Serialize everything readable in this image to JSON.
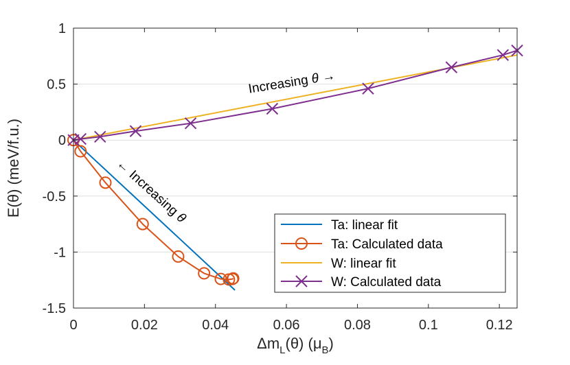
{
  "chart_data": {
    "type": "line",
    "xlabel": "Δm_L(θ) (μ_B)",
    "ylabel": "E(θ) (meV/f.u.)",
    "xlim": [
      0,
      0.125
    ],
    "ylim": [
      -1.5,
      1
    ],
    "grid": "horizontal",
    "x_ticks": [
      0,
      0.02,
      0.04,
      0.06,
      0.08,
      0.1,
      0.12
    ],
    "x_tick_labels": [
      "0",
      "0.02",
      "0.04",
      "0.06",
      "0.08",
      "0.1",
      "0.12"
    ],
    "y_ticks": [
      -1.5,
      -1,
      -0.5,
      0,
      0.5,
      1
    ],
    "y_tick_labels": [
      "-1.5",
      "-1",
      "-0.5",
      "0",
      "0.5",
      "1"
    ],
    "xlabel_parts": {
      "delta_m": "Δm",
      "sub_L": "L",
      "theta_part": "(θ) (μ",
      "sub_B": "B",
      "close": ")"
    },
    "ylabel_text": "E(θ) (meV/f.u.)",
    "legend_position": "lower-right",
    "series": [
      {
        "name": "Ta: linear fit",
        "style": "line",
        "color": "#0072BD",
        "x": [
          0,
          0.0455
        ],
        "y": [
          0,
          -1.34
        ]
      },
      {
        "name": "Ta: Calculated data",
        "style": "line-circle",
        "color": "#D95319",
        "x": [
          0,
          0.002,
          0.009,
          0.0195,
          0.0295,
          0.0368,
          0.0415,
          0.0438,
          0.0448,
          0.045
        ],
        "y": [
          0,
          -0.1,
          -0.38,
          -0.75,
          -1.04,
          -1.19,
          -1.24,
          -1.245,
          -1.24,
          -1.235
        ]
      },
      {
        "name": "W: linear fit",
        "style": "line",
        "color": "#EDB120",
        "x": [
          0,
          0.125
        ],
        "y": [
          0,
          0.76
        ]
      },
      {
        "name": "W: Calculated data",
        "style": "line-cross",
        "color": "#7E2F8E",
        "x": [
          0,
          0.002,
          0.0075,
          0.0175,
          0.033,
          0.056,
          0.083,
          0.1065,
          0.121,
          0.125
        ],
        "y": [
          0,
          0.01,
          0.03,
          0.08,
          0.15,
          0.28,
          0.46,
          0.65,
          0.76,
          0.8
        ]
      }
    ],
    "annotations": [
      {
        "text": "Increasing θ →",
        "label_text": "Increasing",
        "symbol": "θ",
        "arrow": "→",
        "x": 0.0495,
        "y": 0.42,
        "angle": -9
      },
      {
        "text": "← Increasing θ",
        "label_text": "Increasing",
        "symbol": "θ",
        "arrow": "←",
        "x": 0.012,
        "y": -0.22,
        "angle": 42
      }
    ]
  }
}
